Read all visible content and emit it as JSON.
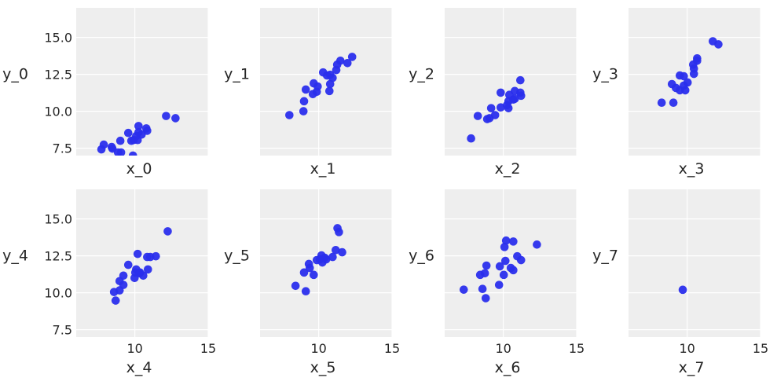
{
  "chart_data": {
    "type": "scatter",
    "layout": {
      "rows": 2,
      "cols": 4,
      "sharex": true,
      "sharey": true,
      "grid": true,
      "background": "#eeeeee",
      "marker_color": "#2a2eec"
    },
    "xlim": [
      6,
      15
    ],
    "ylim": [
      7,
      17
    ],
    "xticks": [
      10,
      15
    ],
    "xtick_labels": [
      "10",
      "15"
    ],
    "yticks": [
      7.5,
      10.0,
      12.5,
      15.0
    ],
    "ytick_labels": [
      "7.5",
      "10.0",
      "12.5",
      "15.0"
    ],
    "panels": [
      {
        "xlabel": "x_0",
        "ylabel": "y_0",
        "x": [
          12.13,
          12.77,
          10.25,
          10.78,
          10.84,
          9.55,
          10.25,
          10.09,
          10.46,
          9.92,
          10.19,
          9.76,
          9.01,
          7.88,
          8.42,
          8.47,
          7.72,
          8.85,
          9.06,
          9.87
        ],
        "y": [
          9.68,
          9.53,
          9.0,
          8.84,
          8.68,
          8.53,
          8.58,
          8.32,
          8.42,
          8.05,
          8.05,
          8.0,
          8.0,
          7.74,
          7.58,
          7.47,
          7.42,
          7.21,
          7.21,
          7.0
        ]
      },
      {
        "xlabel": "x_1",
        "ylabel": "y_1",
        "x": [
          8.0,
          8.96,
          9.0,
          9.12,
          9.6,
          9.66,
          9.87,
          9.93,
          10.3,
          10.57,
          10.78,
          10.95,
          10.78,
          10.73,
          11.2,
          11.26,
          11.48,
          11.96,
          12.28
        ],
        "y": [
          9.74,
          10.0,
          10.68,
          11.47,
          11.16,
          11.89,
          11.32,
          11.68,
          12.63,
          12.42,
          12.47,
          12.26,
          11.84,
          11.37,
          12.79,
          13.16,
          13.42,
          13.26,
          13.68
        ]
      },
      {
        "xlabel": "x_2",
        "ylabel": "y_2",
        "x": [
          7.8,
          8.26,
          8.9,
          9.06,
          9.17,
          9.44,
          9.82,
          9.82,
          10.35,
          10.35,
          10.41,
          10.78,
          10.78,
          11.16,
          11.21,
          11.16,
          10.68,
          10.25
        ],
        "y": [
          8.16,
          9.68,
          9.47,
          9.53,
          10.21,
          9.74,
          11.26,
          10.26,
          10.21,
          10.68,
          11.11,
          10.84,
          11.37,
          11.26,
          11.05,
          12.1,
          10.79,
          10.42
        ]
      },
      {
        "xlabel": "x_3",
        "ylabel": "y_3",
        "x": [
          8.26,
          9.06,
          8.96,
          9.23,
          9.5,
          9.87,
          9.77,
          10.03,
          9.5,
          9.77,
          10.46,
          10.41,
          10.46,
          10.68,
          10.68,
          11.75,
          12.13
        ],
        "y": [
          10.58,
          10.58,
          11.84,
          11.58,
          11.42,
          11.42,
          11.74,
          11.95,
          12.42,
          12.37,
          12.53,
          13.16,
          12.89,
          13.58,
          13.42,
          14.74,
          14.53
        ]
      },
      {
        "xlabel": "x_4",
        "ylabel": "y_4",
        "x": [
          8.69,
          8.58,
          8.96,
          9.22,
          8.96,
          9.22,
          9.55,
          9.98,
          10.03,
          10.09,
          10.3,
          10.35,
          10.57,
          10.19,
          10.89,
          10.84,
          11.05,
          11.43,
          12.24
        ],
        "y": [
          9.47,
          10.05,
          10.16,
          10.53,
          10.79,
          11.16,
          11.89,
          11.0,
          11.37,
          11.58,
          11.32,
          11.37,
          11.16,
          12.63,
          11.58,
          12.42,
          12.42,
          12.47,
          14.16
        ]
      },
      {
        "xlabel": "x_5",
        "ylabel": "y_5",
        "x": [
          8.42,
          9.12,
          9.0,
          9.66,
          9.39,
          9.33,
          9.87,
          10.19,
          10.25,
          10.08,
          10.51,
          10.41,
          10.95,
          11.16,
          11.6,
          11.28,
          11.38
        ],
        "y": [
          10.47,
          10.1,
          11.37,
          11.21,
          11.68,
          11.95,
          12.21,
          12.53,
          12.05,
          12.26,
          12.26,
          12.37,
          12.42,
          12.89,
          12.74,
          14.37,
          14.11
        ]
      },
      {
        "xlabel": "x_6",
        "ylabel": "y_6",
        "x": [
          7.3,
          8.58,
          8.8,
          8.42,
          8.74,
          8.85,
          9.71,
          10.03,
          9.76,
          10.14,
          10.51,
          10.68,
          10.08,
          10.19,
          10.68,
          10.95,
          11.21,
          12.29
        ],
        "y": [
          10.21,
          10.26,
          9.63,
          11.21,
          11.32,
          11.84,
          10.53,
          11.21,
          11.79,
          12.16,
          11.68,
          11.53,
          13.1,
          13.53,
          13.47,
          12.47,
          12.21,
          13.26
        ]
      },
      {
        "xlabel": "x_7",
        "ylabel": "y_7",
        "x": [
          9.7
        ],
        "y": [
          10.2
        ]
      }
    ]
  }
}
